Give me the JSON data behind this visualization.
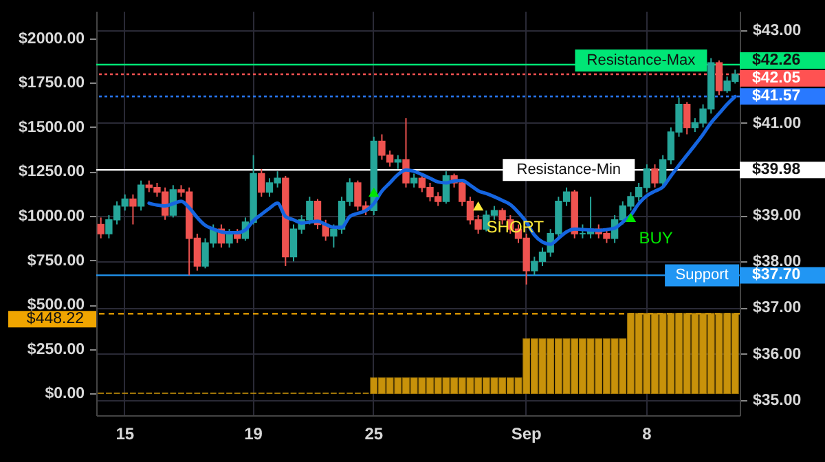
{
  "chart_data": {
    "type": "candlestick",
    "categories": [
      null,
      null,
      null,
      "15",
      null,
      null,
      null,
      null,
      null,
      null,
      null,
      null,
      null,
      null,
      null,
      null,
      null,
      null,
      null,
      "19",
      null,
      null,
      null,
      null,
      null,
      null,
      null,
      null,
      null,
      null,
      null,
      null,
      null,
      null,
      "25",
      null,
      null,
      null,
      null,
      null,
      null,
      null,
      null,
      null,
      null,
      null,
      null,
      null,
      null,
      null,
      null,
      null,
      null,
      "Sep",
      null,
      null,
      null,
      null,
      null,
      null,
      null,
      null,
      null,
      null,
      null,
      null,
      null,
      null,
      "8",
      null,
      null,
      null,
      null,
      null,
      null,
      null,
      null,
      null,
      null,
      null
    ],
    "series": [
      {
        "type": "bar",
        "axis": "y",
        "color": "#c8920a",
        "values": [
          0,
          0,
          0,
          0,
          0,
          0,
          0,
          0,
          0,
          0,
          0,
          0,
          0,
          0,
          0,
          0,
          0,
          0,
          0,
          0,
          0,
          0,
          0,
          0,
          0,
          0,
          0,
          0,
          0,
          0,
          0,
          0,
          0,
          0,
          85,
          85,
          85,
          85,
          85,
          85,
          85,
          85,
          85,
          85,
          85,
          85,
          85,
          85,
          85,
          85,
          85,
          85,
          85,
          305,
          305,
          305,
          305,
          305,
          305,
          305,
          305,
          305,
          305,
          305,
          305,
          305,
          448.22,
          448.22,
          448.22,
          448.22,
          448.22,
          448.22,
          448.22,
          448.22,
          448.22,
          448.22,
          448.22,
          448.22,
          448.22,
          448.22
        ]
      },
      {
        "axis": "y2",
        "ohlc": [
          [
            38.8,
            38.95,
            38.5,
            38.6
          ],
          [
            38.6,
            39.0,
            38.5,
            38.9
          ],
          [
            38.9,
            39.3,
            38.8,
            39.2
          ],
          [
            39.2,
            39.45,
            39.1,
            39.35
          ],
          [
            39.35,
            39.45,
            38.8,
            39.2
          ],
          [
            39.2,
            39.75,
            39.1,
            39.65
          ],
          [
            39.65,
            39.75,
            39.5,
            39.6
          ],
          [
            39.6,
            39.7,
            39.4,
            39.5
          ],
          [
            39.5,
            39.6,
            38.9,
            39.0
          ],
          [
            39.0,
            39.65,
            38.95,
            39.55
          ],
          [
            39.55,
            39.65,
            39.4,
            39.5
          ],
          [
            39.5,
            39.6,
            37.7,
            38.5
          ],
          [
            38.5,
            38.6,
            37.8,
            37.9
          ],
          [
            37.9,
            38.5,
            37.85,
            38.4
          ],
          [
            38.4,
            38.8,
            38.3,
            38.7
          ],
          [
            38.7,
            38.8,
            38.3,
            38.4
          ],
          [
            38.4,
            38.7,
            38.3,
            38.6
          ],
          [
            38.6,
            38.7,
            38.4,
            38.5
          ],
          [
            38.5,
            38.95,
            38.45,
            38.85
          ],
          [
            38.85,
            40.3,
            38.8,
            39.9
          ],
          [
            39.9,
            40.0,
            39.4,
            39.5
          ],
          [
            39.5,
            39.8,
            39.4,
            39.7
          ],
          [
            39.7,
            39.95,
            39.6,
            39.8
          ],
          [
            39.8,
            39.85,
            37.9,
            38.1
          ],
          [
            38.1,
            38.8,
            38.0,
            38.7
          ],
          [
            38.7,
            39.0,
            38.6,
            38.9
          ],
          [
            38.9,
            39.4,
            38.8,
            39.3
          ],
          [
            39.3,
            39.35,
            38.7,
            38.8
          ],
          [
            38.8,
            38.9,
            38.45,
            38.55
          ],
          [
            38.55,
            38.8,
            38.3,
            38.7
          ],
          [
            38.7,
            39.4,
            38.6,
            39.3
          ],
          [
            39.3,
            39.8,
            39.2,
            39.7
          ],
          [
            39.7,
            39.75,
            39.1,
            39.2
          ],
          [
            39.2,
            39.3,
            39.0,
            39.1
          ],
          [
            39.1,
            40.7,
            39.0,
            40.6
          ],
          [
            40.6,
            40.75,
            40.2,
            40.3
          ],
          [
            40.3,
            40.4,
            40.05,
            40.15
          ],
          [
            40.15,
            40.3,
            40.0,
            40.2
          ],
          [
            40.2,
            41.1,
            39.6,
            39.7
          ],
          [
            39.7,
            39.9,
            39.6,
            39.8
          ],
          [
            39.8,
            39.85,
            39.5,
            39.6
          ],
          [
            39.6,
            39.7,
            39.3,
            39.4
          ],
          [
            39.4,
            39.5,
            39.2,
            39.3
          ],
          [
            39.3,
            39.95,
            39.25,
            39.85
          ],
          [
            39.85,
            39.9,
            39.6,
            39.7
          ],
          [
            39.7,
            39.75,
            39.2,
            39.3
          ],
          [
            39.3,
            39.4,
            38.8,
            38.9
          ],
          [
            38.9,
            39.0,
            38.6,
            38.7
          ],
          [
            38.7,
            39.1,
            38.65,
            39.0
          ],
          [
            39.0,
            39.2,
            38.9,
            39.1
          ],
          [
            39.1,
            39.15,
            38.8,
            38.9
          ],
          [
            38.9,
            39.0,
            38.6,
            38.7
          ],
          [
            38.7,
            38.8,
            38.4,
            38.5
          ],
          [
            38.5,
            38.6,
            37.5,
            37.8
          ],
          [
            37.8,
            38.1,
            37.7,
            38.0
          ],
          [
            38.0,
            38.3,
            37.9,
            38.2
          ],
          [
            38.2,
            38.7,
            38.1,
            38.6
          ],
          [
            38.6,
            39.4,
            38.5,
            39.3
          ],
          [
            39.3,
            39.6,
            39.2,
            39.5
          ],
          [
            39.5,
            39.55,
            38.5,
            38.6
          ],
          [
            38.6,
            38.8,
            38.5,
            38.6
          ],
          [
            38.6,
            39.4,
            38.5,
            38.7
          ],
          [
            38.7,
            38.8,
            38.5,
            38.6
          ],
          [
            38.6,
            38.7,
            38.4,
            38.5
          ],
          [
            38.5,
            39.0,
            38.4,
            38.9
          ],
          [
            38.9,
            39.3,
            38.8,
            39.2
          ],
          [
            39.2,
            39.5,
            39.1,
            39.4
          ],
          [
            39.4,
            39.7,
            39.3,
            39.6
          ],
          [
            39.6,
            40.1,
            39.5,
            40.0
          ],
          [
            40.0,
            40.1,
            39.6,
            39.7
          ],
          [
            39.7,
            40.3,
            39.6,
            40.2
          ],
          [
            40.2,
            40.9,
            40.1,
            40.8
          ],
          [
            40.8,
            41.55,
            40.7,
            41.4
          ],
          [
            41.4,
            41.45,
            40.75,
            40.9
          ],
          [
            40.9,
            41.1,
            40.8,
            41.0
          ],
          [
            41.0,
            41.4,
            40.9,
            41.3
          ],
          [
            41.3,
            42.4,
            41.2,
            42.3
          ],
          [
            42.3,
            42.35,
            41.6,
            41.7
          ],
          [
            41.7,
            42.0,
            41.65,
            41.9
          ],
          [
            41.9,
            42.15,
            41.85,
            42.05
          ]
        ],
        "colors": [
          "#ef5350",
          "#26a69a",
          "#26a69a",
          "#26a69a",
          "#ef5350",
          "#26a69a",
          "#ef5350",
          "#ef5350",
          "#ef5350",
          "#26a69a",
          "#ef5350",
          "#ef5350",
          "#ef5350",
          "#26a69a",
          "#26a69a",
          "#ef5350",
          "#26a69a",
          "#ef5350",
          "#26a69a",
          "#26a69a",
          "#ef5350",
          "#26a69a",
          "#26a69a",
          "#ef5350",
          "#26a69a",
          "#26a69a",
          "#26a69a",
          "#ef5350",
          "#ef5350",
          "#26a69a",
          "#26a69a",
          "#26a69a",
          "#ef5350",
          "#ef5350",
          "#26a69a",
          "#ef5350",
          "#ef5350",
          "#26a69a",
          "#ef5350",
          "#26a69a",
          "#ef5350",
          "#ef5350",
          "#ef5350",
          "#26a69a",
          "#ef5350",
          "#ef5350",
          "#ef5350",
          "#ef5350",
          "#26a69a",
          "#26a69a",
          "#ef5350",
          "#ef5350",
          "#ef5350",
          "#ef5350",
          "#26a69a",
          "#26a69a",
          "#26a69a",
          "#26a69a",
          "#26a69a",
          "#ef5350",
          "#26a69a",
          "#26a69a",
          "#ef5350",
          "#ef5350",
          "#26a69a",
          "#26a69a",
          "#26a69a",
          "#26a69a",
          "#26a69a",
          "#ef5350",
          "#26a69a",
          "#26a69a",
          "#26a69a",
          "#ef5350",
          "#26a69a",
          "#26a69a",
          "#26a69a",
          "#ef5350",
          "#26a69a",
          "#26a69a"
        ]
      },
      {
        "type": "line",
        "axis": "y2",
        "color": "#1565e0",
        "values": [
          null,
          null,
          null,
          null,
          null,
          null,
          39.26,
          39.22,
          39.2,
          39.25,
          39.3,
          39.16,
          38.95,
          38.78,
          38.7,
          38.64,
          38.62,
          38.62,
          38.68,
          38.88,
          39.02,
          39.15,
          39.26,
          38.97,
          38.9,
          38.83,
          38.85,
          38.87,
          38.8,
          38.74,
          38.74,
          38.97,
          39.04,
          39.1,
          39.25,
          39.52,
          39.7,
          39.88,
          39.98,
          39.95,
          39.88,
          39.8,
          39.72,
          39.7,
          39.74,
          39.75,
          39.65,
          39.53,
          39.47,
          39.4,
          39.32,
          39.23,
          39.06,
          38.85,
          38.57,
          38.42,
          38.37,
          38.5,
          38.64,
          38.7,
          38.69,
          38.68,
          38.67,
          38.69,
          38.72,
          38.85,
          39.0,
          39.25,
          39.42,
          39.52,
          39.61,
          39.85,
          40.08,
          40.3,
          40.52,
          40.75,
          41.0,
          41.2,
          41.4,
          41.57
        ]
      },
      {
        "name": "SHORT",
        "type": "scatter",
        "axis": "y2",
        "marker": "triangle",
        "color": "#ffeb3b",
        "values": [
          null,
          null,
          null,
          null,
          null,
          null,
          null,
          null,
          null,
          null,
          null,
          null,
          null,
          null,
          null,
          null,
          null,
          null,
          null,
          null,
          null,
          null,
          null,
          null,
          null,
          null,
          null,
          null,
          null,
          null,
          null,
          null,
          null,
          null,
          null,
          null,
          null,
          null,
          null,
          null,
          null,
          null,
          null,
          null,
          null,
          null,
          null,
          39.2,
          null,
          null,
          null,
          null,
          null,
          null,
          null,
          null,
          null,
          null,
          null,
          null,
          null,
          null,
          null,
          null,
          null,
          null,
          null,
          null,
          null,
          null,
          null,
          null,
          null,
          null,
          null,
          null,
          null,
          null,
          null,
          null
        ]
      },
      {
        "name": "BUY",
        "type": "scatter",
        "axis": "y2",
        "marker": "triangle",
        "color": "#00e600",
        "values": [
          null,
          null,
          null,
          null,
          null,
          null,
          null,
          null,
          null,
          null,
          null,
          null,
          null,
          null,
          null,
          null,
          null,
          null,
          null,
          null,
          null,
          null,
          null,
          null,
          null,
          null,
          null,
          null,
          null,
          null,
          null,
          null,
          null,
          null,
          39.5,
          null,
          null,
          null,
          null,
          null,
          null,
          null,
          null,
          null,
          null,
          null,
          null,
          null,
          null,
          null,
          null,
          null,
          null,
          null,
          null,
          null,
          null,
          null,
          null,
          null,
          null,
          null,
          null,
          null,
          null,
          null,
          38.95,
          null,
          null,
          null,
          null,
          null,
          null,
          null,
          null,
          null,
          null,
          null,
          null,
          null
        ]
      }
    ],
    "ylim": [
      -124,
      2155
    ],
    "yticks": [
      {
        "value": 0,
        "label": "$0.00"
      },
      {
        "value": 250,
        "label": "$250.00"
      },
      {
        "value": 500,
        "label": "$500.00"
      },
      {
        "value": 750,
        "label": "$750.00"
      },
      {
        "value": 1000,
        "label": "$1000.00"
      },
      {
        "value": 1250,
        "label": "$1250.00"
      },
      {
        "value": 1500,
        "label": "$1500.00"
      },
      {
        "value": 1750,
        "label": "$1750.00"
      },
      {
        "value": 2000,
        "label": "$2000.00"
      },
      {
        "value": 448.22,
        "label": "$448.22"
      }
    ],
    "y2lim": [
      34.67,
      43.42
    ],
    "y2ticks": [
      {
        "value": 35,
        "label": "$35.00"
      },
      {
        "value": 36,
        "label": "$36.00"
      },
      {
        "value": 37,
        "label": "$37.00"
      },
      {
        "value": 38,
        "label": "$38.00"
      },
      {
        "value": 39,
        "label": "$39.00"
      },
      {
        "value": 41,
        "label": "$41.00"
      },
      {
        "value": 43,
        "label": "$43.00"
      },
      {
        "value": 42.26,
        "label": "$42.26"
      },
      {
        "value": 42.05,
        "label": "$42.05"
      },
      {
        "value": 41.57,
        "label": "$41.57"
      },
      {
        "value": 39.98,
        "label": "$39.98"
      },
      {
        "value": 37.7,
        "label": "$37.70"
      }
    ],
    "ref_lines": [
      {
        "axis": "y2",
        "value": 42.26,
        "label": "Resistance-Max",
        "color": "#00e676"
      },
      {
        "axis": "y2",
        "value": 42.05,
        "color": "#ff5252",
        "line_style": "dotted"
      },
      {
        "axis": "y2",
        "value": 41.57,
        "color": "#2979ff",
        "line_style": "dotted"
      },
      {
        "axis": "y2",
        "value": 39.98,
        "label": "Resistance-Min",
        "color": "#ffffff"
      },
      {
        "axis": "y2",
        "value": 37.7,
        "label": "Support",
        "color": "#2196f3"
      },
      {
        "axis": "y",
        "value": 448.22,
        "color": "#f0a500",
        "line_style": "dashed"
      }
    ],
    "grid": true
  }
}
